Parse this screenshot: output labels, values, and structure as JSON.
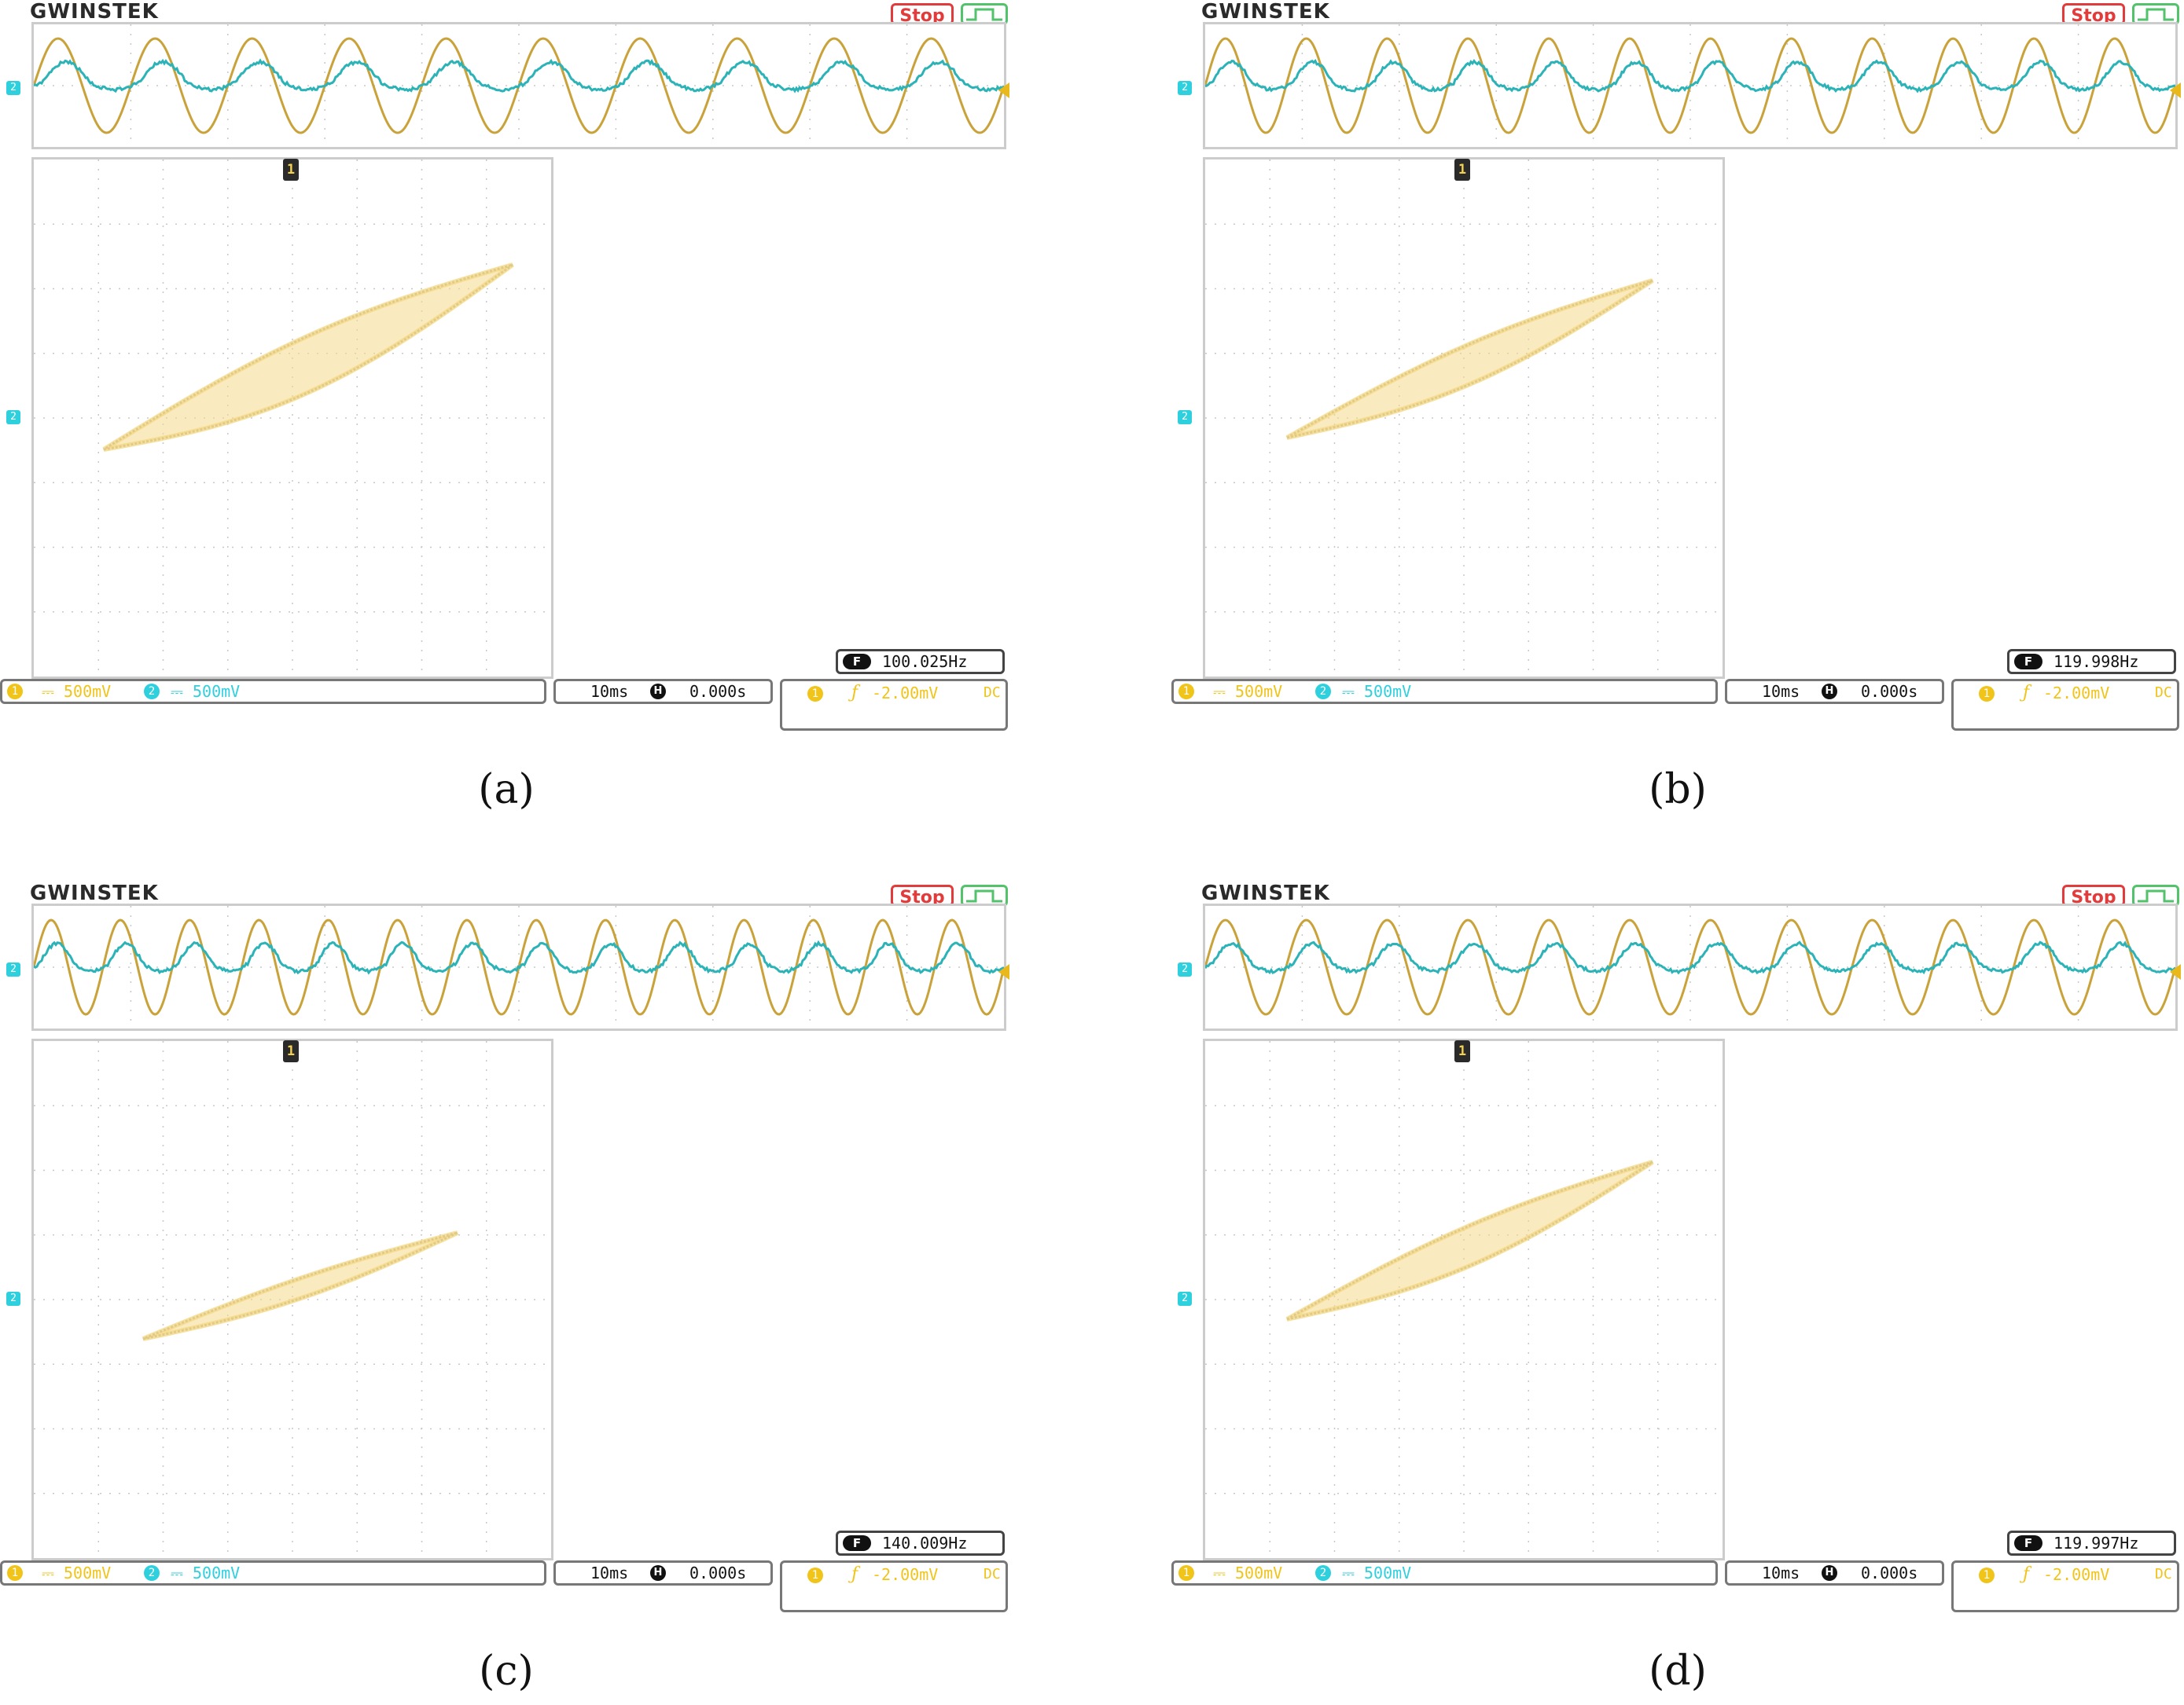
{
  "panels": [
    {
      "id": "a",
      "brand": "GWINSTEK",
      "run_state": "Stop",
      "ch1_scale": "500mV",
      "ch2_scale": "500mV",
      "timebase": "10ms",
      "h_pos_label": "H",
      "h_position": "0.000s",
      "freq_badge": "F",
      "frequency": "100.025Hz",
      "trigger_source": "1",
      "trigger_slope": "ƒ",
      "trigger_level": "-2.00mV",
      "coupling": "DC",
      "caption": "(a)",
      "trace_cycles": 10,
      "loop": "wide"
    },
    {
      "id": "b",
      "brand": "GWINSTEK",
      "run_state": "Stop",
      "ch1_scale": "500mV",
      "ch2_scale": "500mV",
      "timebase": "10ms",
      "h_pos_label": "H",
      "h_position": "0.000s",
      "freq_badge": "F",
      "frequency": "119.998Hz",
      "trigger_source": "1",
      "trigger_slope": "ƒ",
      "trigger_level": "-2.00mV",
      "coupling": "DC",
      "caption": "(b)",
      "trace_cycles": 12,
      "loop": "medium"
    },
    {
      "id": "c",
      "brand": "GWINSTEK",
      "run_state": "Stop",
      "ch1_scale": "500mV",
      "ch2_scale": "500mV",
      "timebase": "10ms",
      "h_pos_label": "H",
      "h_position": "0.000s",
      "freq_badge": "F",
      "frequency": "140.009Hz",
      "trigger_source": "1",
      "trigger_slope": "ƒ",
      "trigger_level": "-2.00mV",
      "coupling": "DC",
      "caption": "(c)",
      "trace_cycles": 14,
      "loop": "narrow"
    },
    {
      "id": "d",
      "brand": "GWINSTEK",
      "run_state": "Stop",
      "ch1_scale": "500mV",
      "ch2_scale": "500mV",
      "timebase": "10ms",
      "h_pos_label": "H",
      "h_position": "0.000s",
      "freq_badge": "F",
      "frequency": "119.997Hz",
      "trigger_source": "1",
      "trigger_slope": "ƒ",
      "trigger_level": "-2.00mV",
      "coupling": "DC",
      "caption": "(d)",
      "trace_cycles": 12,
      "loop": "medium"
    }
  ],
  "channel_markers": {
    "ch2": "2",
    "ch1_xy": "1"
  },
  "colors": {
    "ch1": "#f0c419",
    "ch1_trace": "#c9a23a",
    "ch2": "#2fd0de",
    "ch2_trace": "#2bb3b8",
    "xy_fill": "#f5d98a",
    "xy_edge": "#8a8a7a",
    "grid": "#c8c8c8",
    "stop": "#e23b3b",
    "trigger_icon": "#52c26b"
  }
}
